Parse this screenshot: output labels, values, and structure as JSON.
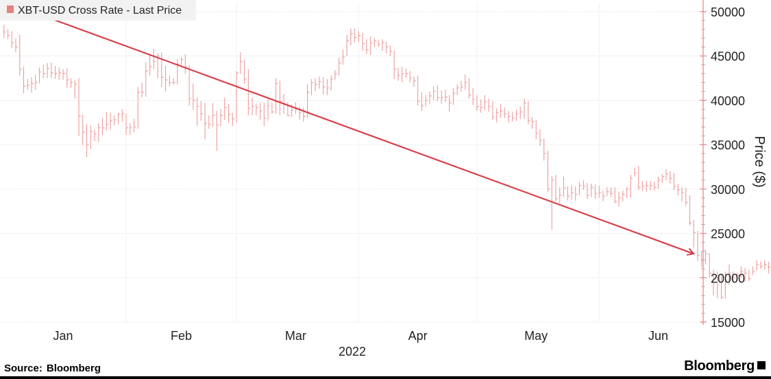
{
  "chart_data": {
    "type": "line",
    "subtype": "ohlc-bars",
    "title": "",
    "legend": {
      "label": "XBT-USD Cross Rate - Last Price",
      "color": "#e88080",
      "position": "top-left"
    },
    "ylabel": "Price ($)",
    "xlabel": "2022",
    "ylim": [
      15000,
      51000
    ],
    "y_axis_side": "right",
    "yticks": [
      15000,
      20000,
      25000,
      30000,
      35000,
      40000,
      45000,
      50000
    ],
    "ytick_labels": [
      "15000",
      "20000",
      "25000",
      "30000",
      "35000",
      "40000",
      "45000",
      "50000"
    ],
    "xlim": [
      "2021-12-31",
      "2022-06-26"
    ],
    "month_labels": [
      {
        "label": "Jan",
        "date": "2022-01-16"
      },
      {
        "label": "Feb",
        "date": "2022-02-15"
      },
      {
        "label": "Mar",
        "date": "2022-03-16"
      },
      {
        "label": "Apr",
        "date": "2022-04-16"
      },
      {
        "label": "May",
        "date": "2022-05-16"
      },
      {
        "label": "Jun",
        "date": "2022-06-16"
      }
    ],
    "month_dividers": [
      "2022-02-01",
      "2022-03-01",
      "2022-04-01",
      "2022-05-01",
      "2022-06-01"
    ],
    "gridlines": true,
    "series": [
      {
        "name": "XBT-USD Cross Rate - Last Price",
        "color": "#ec9a9a",
        "start_date": "2022-01-01",
        "interval": "1 day",
        "close": [
          47700,
          47300,
          46500,
          46000,
          43500,
          41600,
          41700,
          41900,
          42000,
          43200,
          43000,
          43600,
          43100,
          43000,
          43100,
          43000,
          42300,
          42000,
          41800,
          38200,
          36400,
          35000,
          36500,
          36200,
          36900,
          36900,
          37300,
          37700,
          37800,
          38400,
          38500,
          36900,
          36900,
          37000,
          40900,
          40900,
          43300,
          43800,
          44400,
          45000,
          42600,
          42300,
          42000,
          42000,
          44100,
          44600,
          43800,
          40200,
          40000,
          39300,
          38500,
          37400,
          37300,
          38300,
          37200,
          38300,
          39200,
          38400,
          37900,
          43100,
          44400,
          42400,
          39100,
          39300,
          39200,
          38800,
          38000,
          39400,
          38700,
          41900,
          39900,
          39600,
          38300,
          38900,
          39000,
          38600,
          38200,
          40900,
          42000,
          41800,
          42100,
          41500,
          41400,
          42400,
          43000,
          44200,
          44900,
          46700,
          47500,
          47100,
          47300,
          46400,
          45700,
          46500,
          46700,
          46300,
          46500,
          46000,
          45500,
          43500,
          42800,
          43000,
          43000,
          42500,
          42200,
          39900,
          39400,
          40000,
          40500,
          41000,
          40300,
          40300,
          40400,
          39700,
          40800,
          41400,
          41500,
          42000,
          40600,
          40100,
          39300,
          39200,
          39800,
          39300,
          38100,
          38600,
          38800,
          38500,
          38200,
          38000,
          38500,
          38700,
          39700,
          37700,
          37600,
          36300,
          35500,
          34000,
          30000,
          31000,
          28900,
          29300,
          30100,
          29200,
          29600,
          29400,
          30400,
          30300,
          29300,
          30200,
          29500,
          29600,
          29200,
          29700,
          29500,
          28600,
          29000,
          29400,
          30000,
          31200,
          31800,
          30200,
          30300,
          30400,
          30400,
          30200,
          31000,
          31400,
          31700,
          31200,
          30300,
          29900,
          29600,
          28500,
          26200,
          25100,
          22500,
          22000,
          22700,
          20500,
          19800,
          20000,
          17800,
          19500,
          20500,
          20000,
          20300,
          20700,
          20500,
          19900,
          20700,
          21500,
          21300,
          21500,
          21200,
          20700,
          20800,
          20300,
          20400,
          20300
        ],
        "high": [
          48500,
          48000,
          47800,
          47000,
          47400,
          43800,
          42400,
          42600,
          42900,
          43700,
          44000,
          44200,
          44300,
          43900,
          43700,
          43500,
          43600,
          42500,
          42300,
          42500,
          38400,
          37300,
          37200,
          36700,
          37400,
          38000,
          38700,
          38600,
          38300,
          38600,
          39000,
          38500,
          37400,
          37900,
          41500,
          42000,
          44300,
          45200,
          45800,
          45300,
          45400,
          43900,
          42800,
          42500,
          44700,
          44900,
          45200,
          44000,
          41900,
          40300,
          39900,
          39700,
          38300,
          39700,
          38800,
          39000,
          40300,
          39600,
          38600,
          43300,
          45400,
          44600,
          43500,
          40300,
          39600,
          39700,
          39700,
          40100,
          39700,
          42500,
          42200,
          40700,
          39800,
          39500,
          39800,
          39300,
          39200,
          41800,
          42400,
          42500,
          42700,
          42600,
          42400,
          42800,
          43400,
          44800,
          45700,
          47400,
          48100,
          48100,
          47800,
          47600,
          46900,
          47200,
          47000,
          46800,
          46900,
          46600,
          46200,
          45600,
          43700,
          43800,
          43600,
          43300,
          42700,
          42800,
          40900,
          40600,
          41000,
          41600,
          41700,
          41100,
          41200,
          40600,
          41400,
          41800,
          42200,
          42900,
          42500,
          41400,
          40600,
          40100,
          40600,
          40200,
          39900,
          39100,
          39600,
          39200,
          38800,
          38700,
          38900,
          39300,
          40200,
          39900,
          38100,
          37800,
          36700,
          35700,
          34300,
          31500,
          31600,
          30200,
          31400,
          30300,
          30500,
          30300,
          30800,
          31000,
          30700,
          30600,
          30500,
          30400,
          29800,
          30200,
          30200,
          30200,
          29700,
          29800,
          30200,
          31600,
          32400,
          32600,
          30900,
          30900,
          30900,
          30800,
          31400,
          31700,
          32200,
          32000,
          31800,
          30600,
          30200,
          30100,
          29300,
          26500,
          25300,
          23000,
          23200,
          22800,
          20900,
          20700,
          20400,
          20700,
          21500,
          20700,
          20600,
          21300,
          21100,
          20900,
          21300,
          22000,
          21800,
          22000,
          21800,
          21700,
          21100,
          21000,
          20800,
          20700
        ],
        "low": [
          47000,
          46900,
          45900,
          45400,
          42800,
          40800,
          41200,
          40900,
          41200,
          41900,
          42500,
          42500,
          42500,
          42400,
          42300,
          42300,
          41400,
          41400,
          40200,
          36000,
          34900,
          33600,
          34500,
          35400,
          35300,
          36100,
          36600,
          36700,
          37200,
          37300,
          37600,
          36100,
          36100,
          36400,
          36800,
          40300,
          40400,
          42800,
          43500,
          42500,
          41500,
          41000,
          41600,
          41800,
          41800,
          43700,
          43000,
          39400,
          38900,
          37100,
          37700,
          35600,
          36800,
          37000,
          34300,
          37100,
          37800,
          37500,
          37100,
          37500,
          43000,
          41900,
          38300,
          38300,
          38300,
          37800,
          37100,
          37700,
          38500,
          38500,
          38300,
          38500,
          38200,
          38100,
          38500,
          37800,
          37600,
          38000,
          40600,
          41000,
          41300,
          40700,
          40600,
          41100,
          42300,
          42800,
          44000,
          45000,
          46200,
          46500,
          46600,
          45600,
          45200,
          45100,
          46000,
          46000,
          45600,
          45300,
          45000,
          42400,
          42200,
          42000,
          42500,
          42000,
          41500,
          39400,
          38800,
          39300,
          39600,
          40000,
          39900,
          39600,
          39800,
          38700,
          39500,
          40600,
          41000,
          41200,
          40200,
          39500,
          38800,
          38600,
          38900,
          38700,
          37800,
          37500,
          38000,
          38000,
          37500,
          37600,
          37700,
          37900,
          37900,
          37300,
          36800,
          35600,
          34900,
          33200,
          29700,
          25400,
          28600,
          28400,
          29100,
          28700,
          28800,
          28700,
          29300,
          29900,
          28900,
          29100,
          28900,
          29000,
          28600,
          29200,
          29100,
          28400,
          28000,
          28600,
          29000,
          29000,
          31400,
          29900,
          29800,
          29700,
          29900,
          29800,
          30000,
          30700,
          31000,
          30600,
          29900,
          29300,
          28600,
          28100,
          25900,
          23400,
          21900,
          21200,
          21500,
          20000,
          18000,
          17700,
          17600,
          17600,
          19200,
          19500,
          19600,
          20000,
          19600,
          19600,
          20300,
          20800,
          21000,
          20900,
          20500,
          20400,
          20300,
          20000,
          20100,
          20100
        ]
      }
    ],
    "trendline": {
      "color": "#d9404a",
      "from": {
        "date": "2022-01-05",
        "value": 50500
      },
      "to": {
        "date": "2022-06-25",
        "value": 22700
      },
      "arrow": true
    }
  },
  "footer": {
    "source_label": "Source:",
    "source_value": "Bloomberg",
    "brand": "Bloomberg"
  }
}
